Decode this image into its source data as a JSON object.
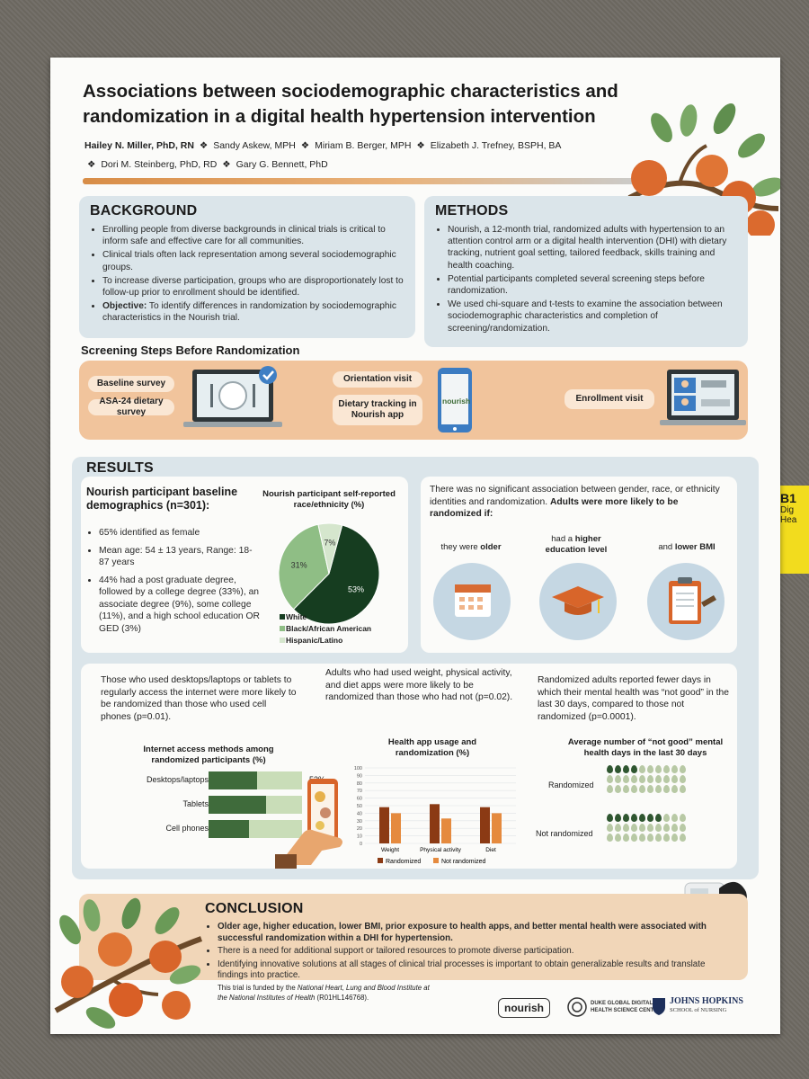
{
  "title": "Associations between sociodemographic characteristics and randomization in a digital health hypertension intervention",
  "authors": [
    "Hailey N. Miller, PhD, RN",
    "Sandy Askew, MPH",
    "Miriam B. Berger, MPH",
    "Elizabeth J. Trefney, BSPH, BA",
    "Dori M. Steinberg, PhD, RD",
    "Gary G. Bennett, PhD"
  ],
  "author_sep": "❖",
  "badge": {
    "code": "B1",
    "line1": "Dig",
    "line2": "Hea"
  },
  "background": {
    "heading": "BACKGROUND",
    "bullets": [
      "Enrolling people from diverse backgrounds in clinical trials is critical to inform safe and effective care for all communities.",
      "Clinical trials often lack representation among several sociodemographic groups.",
      "To increase diverse participation, groups who are disproportionately lost to follow-up prior to enrollment should be identified."
    ],
    "objective_label": "Objective:",
    "objective_text": " To identify differences in randomization by sociodemographic characteristics in the Nourish trial."
  },
  "methods": {
    "heading": "METHODS",
    "bullets": [
      "Nourish, a 12-month trial, randomized adults with hypertension to an attention control arm or a digital health intervention (DHI) with dietary tracking, nutrient goal setting, tailored feedback, skills training and health coaching.",
      "Potential participants completed several screening steps before randomization.",
      "We used chi-square and t-tests to examine the association between sociodemographic characteristics and completion of screening/randomization."
    ]
  },
  "screening": {
    "heading": "Screening Steps Before Randomization",
    "step1": [
      "Baseline survey",
      "ASA-24 dietary survey"
    ],
    "step2": [
      "Orientation visit",
      "Dietary tracking in Nourish app"
    ],
    "step3": [
      "Enrollment visit"
    ],
    "app_name": "nourish"
  },
  "results": {
    "heading": "RESULTS",
    "demo_heading": "Nourish participant baseline demographics (n=301):",
    "demo_bullets": [
      "65% identified as female",
      "Mean age: 54 ± 13 years, Range: 18-87 years",
      "44% had a post graduate degree, followed by a college degree (33%), an associate degree (9%), some college (11%), and a high school education OR GED (3%)"
    ],
    "assoc_intro": "There was no significant association between gender, race, or ethnicity identities and randomization. ",
    "assoc_bold": "Adults were more likely to be randomized if:",
    "cond1_pre": "they were ",
    "cond1_bold": "older",
    "cond2_pre": "had a ",
    "cond2_bold": "higher education level",
    "cond3_pre": "and ",
    "cond3_bold": "lower BMI",
    "internet_text": "Those who used desktops/laptops or tablets to regularly access the internet were more likely to be randomized than those who used cell phones (p=0.01).",
    "app_text": "Adults who had used weight, physical activity, and diet apps were more likely to be randomized than those who had not (p=0.02).",
    "mental_text": "Randomized adults reported fewer days in which their mental health was “not good” in the last 30 days, compared to those not randomized (p=0.0001)."
  },
  "chart_data": [
    {
      "type": "pie",
      "title": "Nourish participant self-reported race/ethnicity (%)",
      "labels": [
        "White",
        "Black/African American",
        "Hispanic/Latino"
      ],
      "values": [
        53,
        31,
        7
      ],
      "value_labels": [
        "53%",
        "31%",
        "7%"
      ],
      "colors": [
        "#163d20",
        "#8fbe85",
        "#d5e6cd"
      ],
      "legend": "bottom-left"
    },
    {
      "type": "bar",
      "orientation": "horizontal",
      "title": "Internet access methods among randomized participants (%)",
      "categories": [
        "Desktops/laptops",
        "Tablets",
        "Cell phones"
      ],
      "values": [
        53,
        63,
        44
      ],
      "value_labels": [
        "53%",
        "63%",
        "44%"
      ],
      "colors": [
        "#3f6b3b",
        "#c9ddb8"
      ]
    },
    {
      "type": "bar",
      "title": "Health app usage and randomization (%)",
      "categories": [
        "Weight",
        "Physical activity",
        "Diet"
      ],
      "series": [
        {
          "name": "Randomized",
          "values": [
            48,
            52,
            48
          ],
          "color": "#8b3a14"
        },
        {
          "name": "Not randomized",
          "values": [
            40,
            33,
            40
          ],
          "color": "#e58a3e"
        }
      ],
      "ylim": [
        0,
        100
      ],
      "yticks": [
        "0",
        "10",
        "20",
        "30",
        "40",
        "50",
        "60",
        "70",
        "80",
        "90",
        "100"
      ],
      "grid": true,
      "legend": "bottom"
    },
    {
      "type": "icon-array",
      "title": "Average number of “not good” mental health days in the last 30 days",
      "categories": [
        "Randomized",
        "Not randomized"
      ],
      "values": [
        4,
        7
      ],
      "total": 30,
      "colors": [
        "#2f5630",
        "#b8c9a5"
      ]
    }
  ],
  "conclusion": {
    "heading": "CONCLUSION",
    "bullets": [
      "Older age, higher education, lower BMI, prior exposure to health apps, and better mental health were associated with successful randomization within a DHI for hypertension.",
      "There is a need for additional support or tailored resources to promote diverse participation.",
      "Identifying innovative solutions at all stages of clinical trial processes is important to obtain generalizable results and translate findings into practice."
    ]
  },
  "footer": {
    "funding_pre": "This trial is funded by the ",
    "funding_ital": "National Heart, Lung and Blood Institute at the National Institutes of Health",
    "funding_post": " (R01HL146768).",
    "logo1": "nourish",
    "logo2a": "DUKE GLOBAL DIGITAL",
    "logo2b": "HEALTH SCIENCE CENTER",
    "logo3a": "JOHNS HOPKINS",
    "logo3b": "SCHOOL of NURSING"
  },
  "colors": {
    "accent_orange": "#e9a868",
    "panel_blue": "#dbe5ea",
    "leaf_green": "#6a9a57",
    "fruit_orange": "#db6a2e"
  }
}
